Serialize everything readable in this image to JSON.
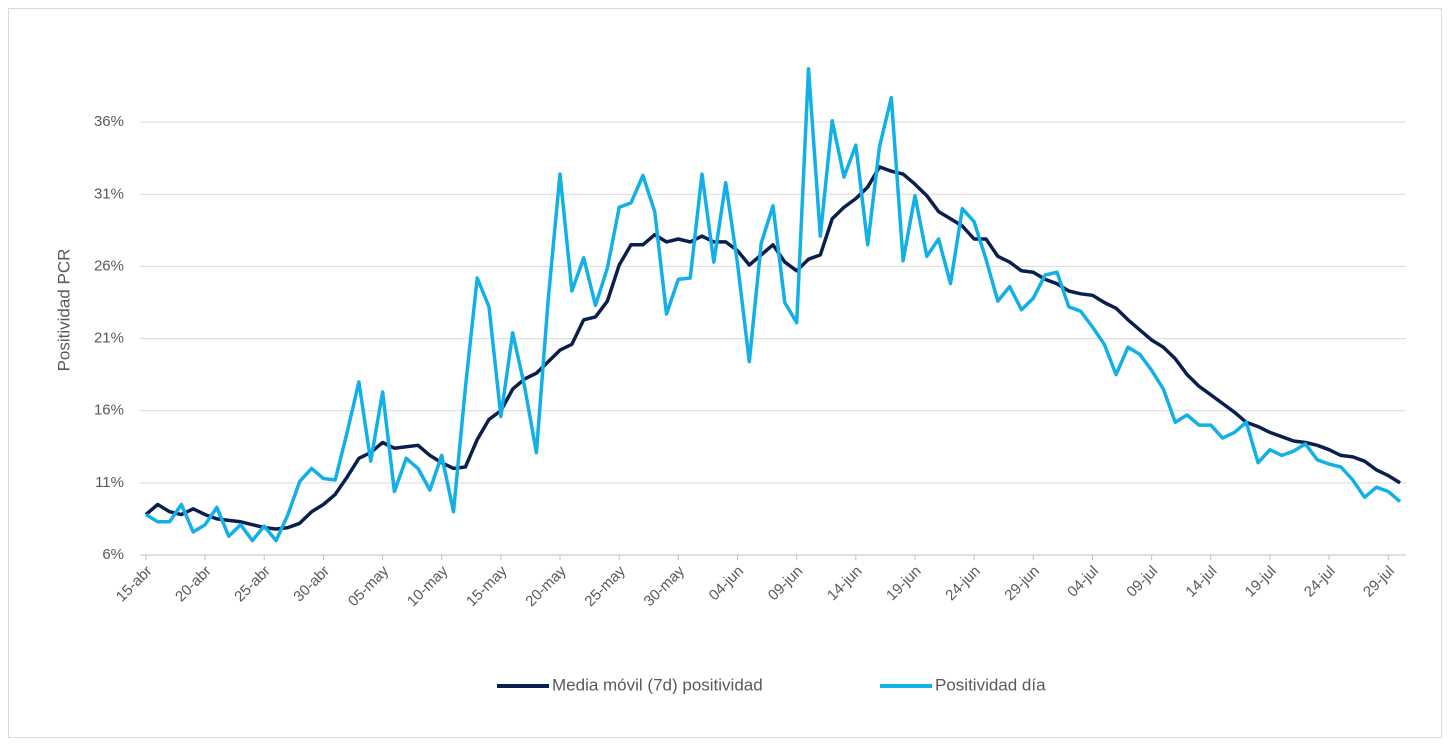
{
  "chart_data": {
    "type": "line",
    "y_label": "Positividad PCR",
    "categories": [
      "15-abr",
      null,
      null,
      null,
      null,
      "20-abr",
      null,
      null,
      null,
      null,
      "25-abr",
      null,
      null,
      null,
      null,
      "30-abr",
      null,
      null,
      null,
      null,
      "05-may",
      null,
      null,
      null,
      null,
      "10-may",
      null,
      null,
      null,
      null,
      "15-may",
      null,
      null,
      null,
      null,
      "20-may",
      null,
      null,
      null,
      null,
      "25-may",
      null,
      null,
      null,
      null,
      "30-may",
      null,
      null,
      null,
      null,
      "04-jun",
      null,
      null,
      null,
      null,
      "09-jun",
      null,
      null,
      null,
      null,
      "14-jun",
      null,
      null,
      null,
      null,
      "19-jun",
      null,
      null,
      null,
      null,
      "24-jun",
      null,
      null,
      null,
      null,
      "29-jun",
      null,
      null,
      null,
      null,
      "04-jul",
      null,
      null,
      null,
      null,
      "09-jul",
      null,
      null,
      null,
      null,
      "14-jul",
      null,
      null,
      null,
      null,
      "19-jul",
      null,
      null,
      null,
      null,
      "24-jul",
      null,
      null,
      null,
      null,
      "29-jul",
      null
    ],
    "series": [
      {
        "name": "Media móvil (7d) positividad",
        "color": "#0b1f4f",
        "values": [
          8.8,
          9.5,
          9.0,
          8.8,
          9.2,
          8.8,
          8.5,
          8.4,
          8.3,
          8.1,
          7.9,
          7.8,
          7.9,
          8.2,
          9.0,
          9.5,
          10.2,
          11.4,
          12.7,
          13.1,
          13.8,
          13.4,
          13.5,
          13.6,
          12.9,
          12.4,
          12.0,
          12.1,
          14.0,
          15.4,
          16.0,
          17.5,
          18.2,
          18.6,
          19.4,
          20.2,
          20.6,
          22.3,
          22.5,
          23.6,
          26.1,
          27.5,
          27.5,
          28.2,
          27.7,
          27.9,
          27.7,
          28.1,
          27.7,
          27.7,
          27.1,
          26.1,
          26.8,
          27.5,
          26.3,
          25.7,
          26.5,
          26.8,
          29.3,
          30.1,
          30.7,
          31.5,
          32.9,
          32.6,
          32.4,
          31.7,
          30.9,
          29.8,
          29.3,
          28.8,
          27.9,
          27.9,
          26.7,
          26.3,
          25.7,
          25.6,
          25.1,
          24.8,
          24.3,
          24.1,
          24.0,
          23.5,
          23.1,
          22.3,
          21.6,
          20.9,
          20.4,
          19.6,
          18.5,
          17.7,
          17.1,
          16.5,
          15.9,
          15.2,
          14.9,
          14.5,
          14.2,
          13.9,
          13.8,
          13.6,
          13.3,
          12.9,
          12.8,
          12.5,
          11.9,
          11.5,
          11.0
        ]
      },
      {
        "name": "Positividad día",
        "color": "#12b0e8",
        "values": [
          8.8,
          8.3,
          8.3,
          9.5,
          7.6,
          8.1,
          9.3,
          7.3,
          8.1,
          7.0,
          8.0,
          7.0,
          8.8,
          11.1,
          12.0,
          11.3,
          11.2,
          14.5,
          18.0,
          12.5,
          17.3,
          10.4,
          12.7,
          12.0,
          10.5,
          12.9,
          9.0,
          17.6,
          25.2,
          23.2,
          15.6,
          21.4,
          17.7,
          13.1,
          23.7,
          32.4,
          24.3,
          26.6,
          23.3,
          25.9,
          30.1,
          30.4,
          32.3,
          29.8,
          22.7,
          25.1,
          25.2,
          32.4,
          26.3,
          31.8,
          26.2,
          19.4,
          27.6,
          30.2,
          23.5,
          22.1,
          39.7,
          28.1,
          36.1,
          32.2,
          34.4,
          27.5,
          34.3,
          37.7,
          26.4,
          30.9,
          26.7,
          27.9,
          24.8,
          30.0,
          29.1,
          26.5,
          23.6,
          24.6,
          23.0,
          23.8,
          25.4,
          25.6,
          23.2,
          22.9,
          21.8,
          20.6,
          18.5,
          20.4,
          19.9,
          18.8,
          17.5,
          15.2,
          15.7,
          15.0,
          15.0,
          14.1,
          14.5,
          15.2,
          12.4,
          13.3,
          12.9,
          13.2,
          13.7,
          12.6,
          12.3,
          12.1,
          11.2,
          10.0,
          10.7,
          10.4,
          9.7
        ]
      }
    ],
    "ylim": [
      6,
      41
    ],
    "yticks": [
      {
        "value": 6,
        "label": "6%"
      },
      {
        "value": 11,
        "label": "11%"
      },
      {
        "value": 16,
        "label": "16%"
      },
      {
        "value": 21,
        "label": "21%"
      },
      {
        "value": 26,
        "label": "26%"
      },
      {
        "value": 31,
        "label": "31%"
      },
      {
        "value": 36,
        "label": "36%"
      }
    ],
    "grid": true,
    "legend": "bottom"
  }
}
